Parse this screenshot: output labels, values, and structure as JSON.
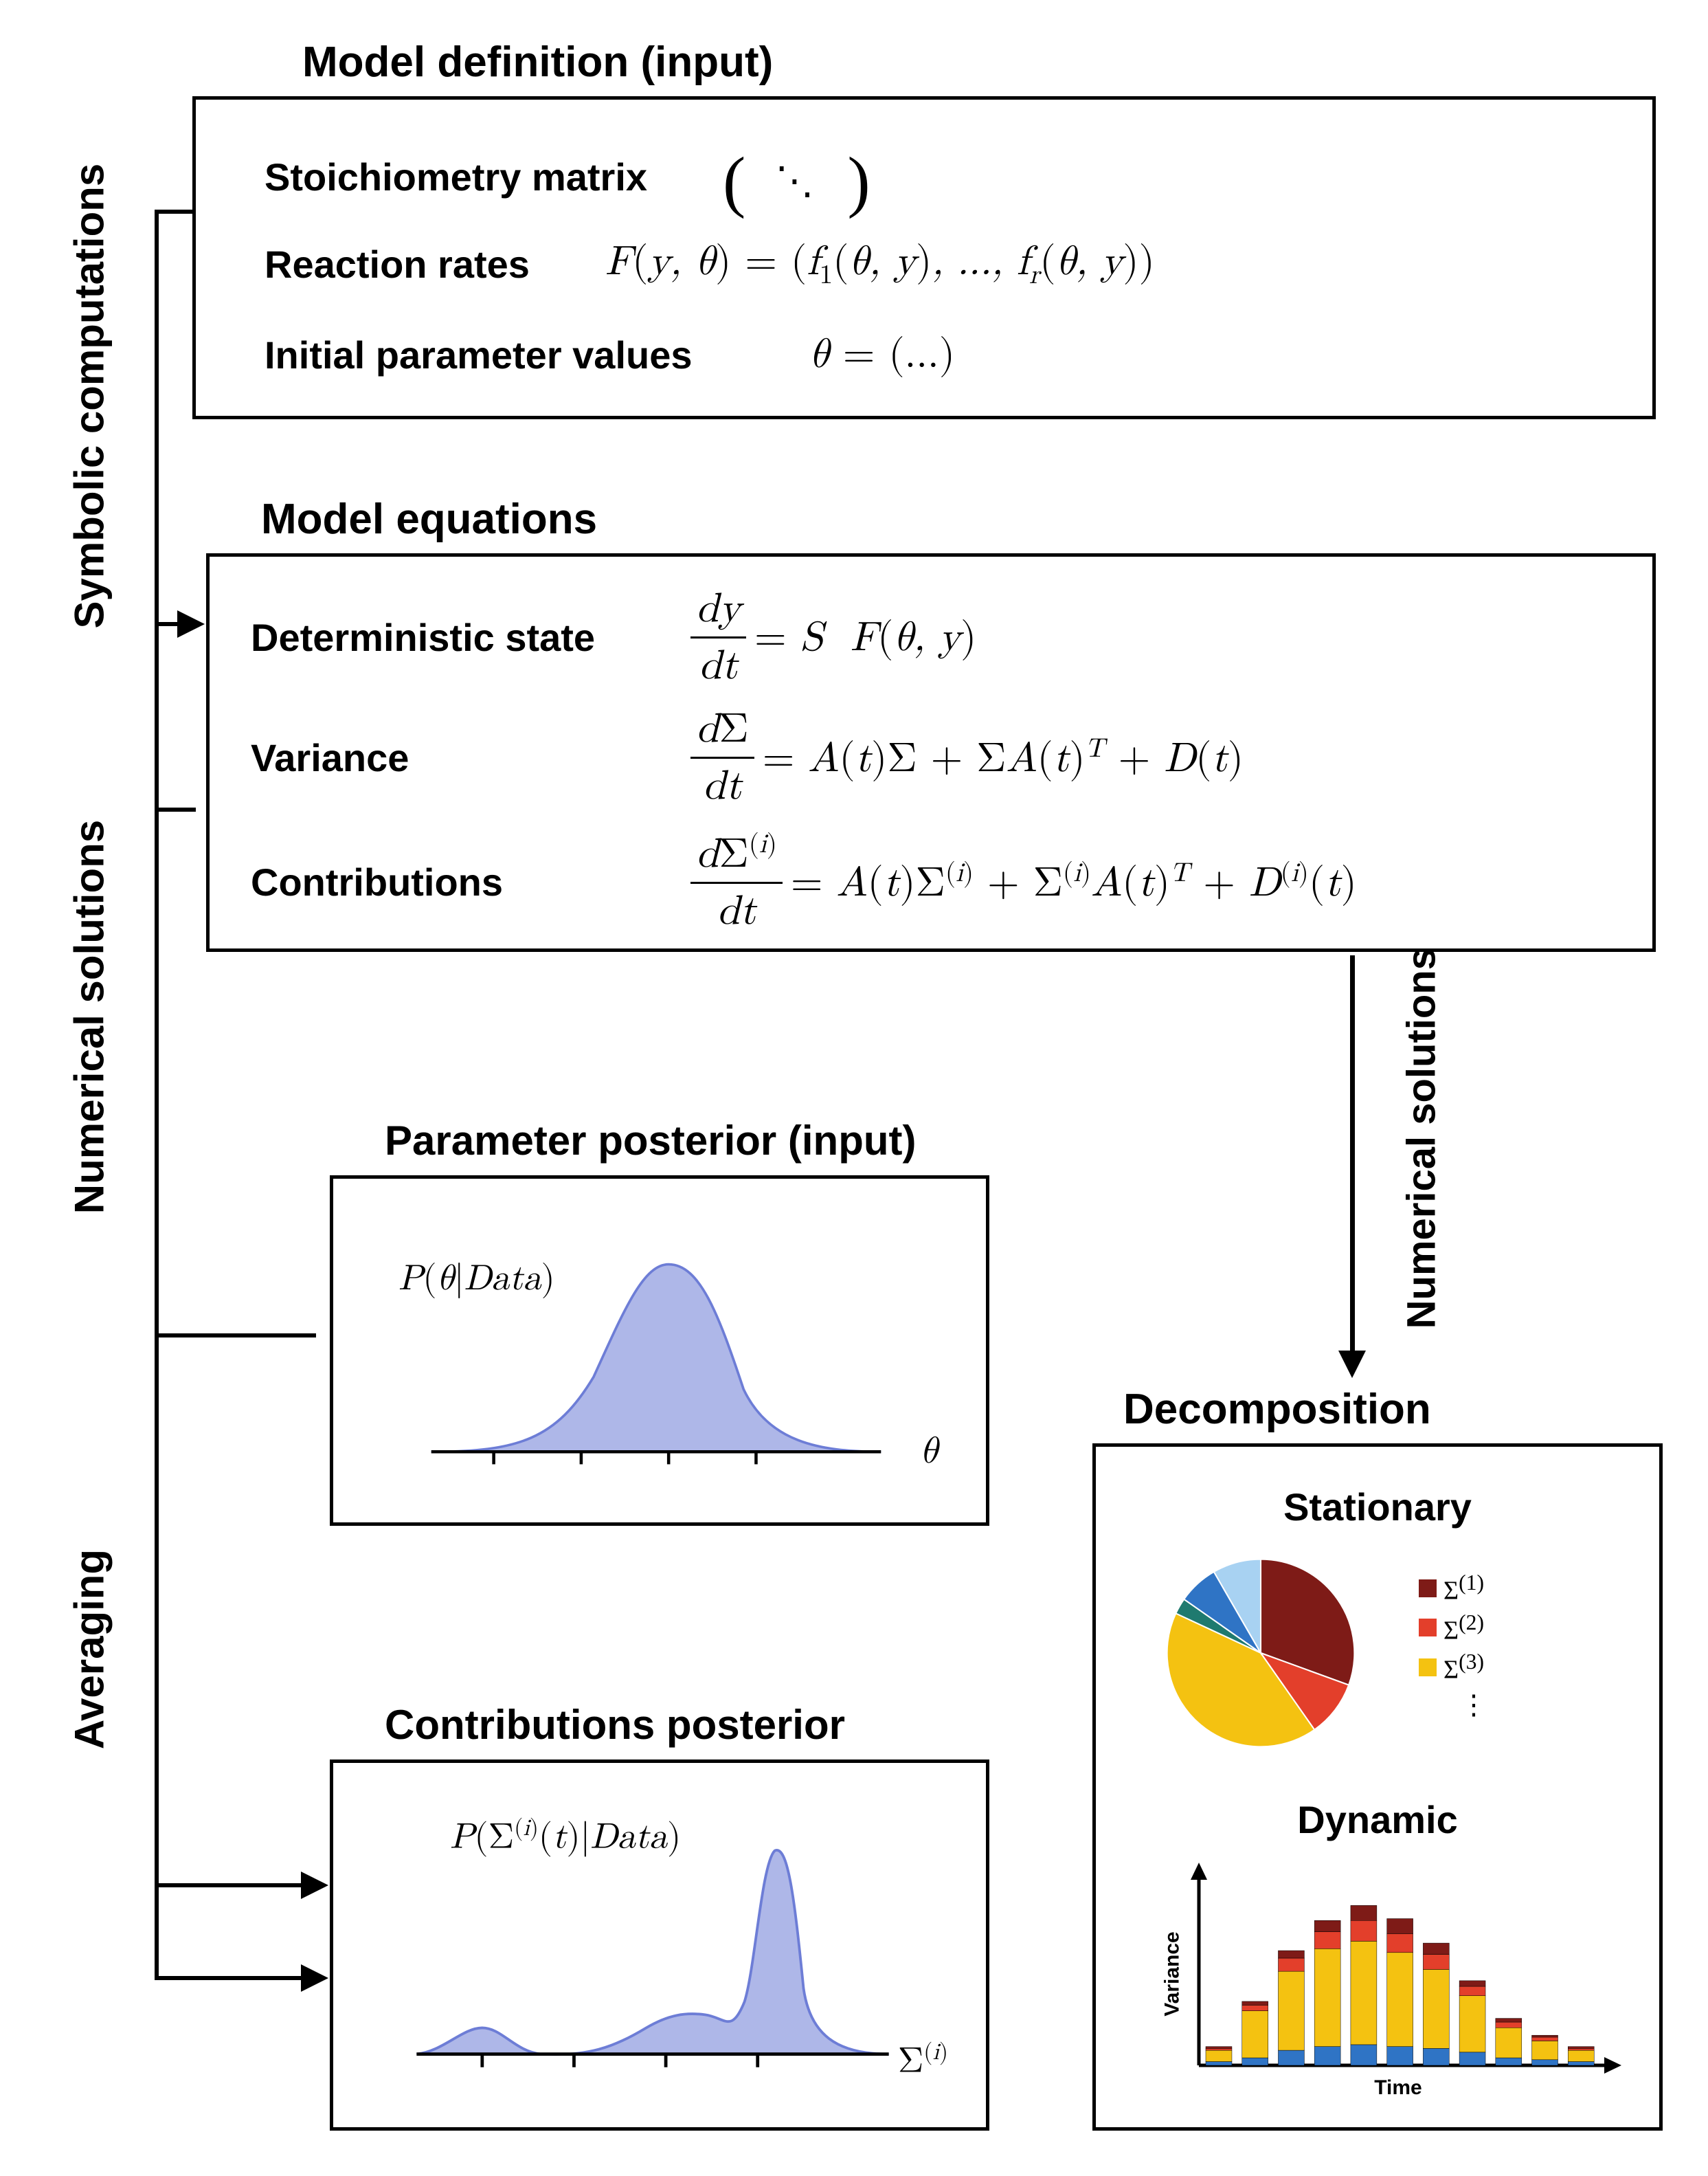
{
  "colors": {
    "border": "#000000",
    "text": "#000000",
    "dist_fill": "#aeb7e8",
    "dist_stroke": "#6d7dd6",
    "pie": {
      "dark_red": "#7e1b17",
      "red": "#e33f2b",
      "yellow": "#f4c211",
      "teal": "#1f7a6f",
      "blue": "#2f74c5",
      "light_blue": "#a8d2f2"
    },
    "bar": {
      "dark_red": "#7e1b17",
      "red": "#e33f2b",
      "yellow": "#f4c211",
      "blue": "#2f74c5"
    }
  },
  "vlabels": {
    "symbolic": "Symbolic computations",
    "numerical1": "Numerical solutions",
    "averaging": "Averaging",
    "numerical2": "Numerical solutions"
  },
  "box1": {
    "title": "Model definition (input)",
    "r1_label": "Stoichiometry matrix",
    "r2_label": "Reaction rates",
    "r2_math": "F(y, θ) = (f₁(θ, y), ..., f_r(θ, y))",
    "r3_label": "Initial parameter values",
    "r3_math": "θ = (...)"
  },
  "box2": {
    "title": "Model equations",
    "r1_label": "Deterministic state",
    "r1_frac_num": "dy",
    "r1_frac_den": "dt",
    "r1_rhs": " = S  F(θ, y)",
    "r2_label": "Variance",
    "r2_frac_num": "dΣ",
    "r2_frac_den": "dt",
    "r2_rhs_a": " = A(t)Σ + ΣA(t)",
    "r2_rhs_sup": "T",
    "r2_rhs_b": " + D(t)",
    "r3_label": "Contributions",
    "r3_frac_num_a": "dΣ",
    "r3_frac_num_sup": "(i)",
    "r3_frac_den": "dt",
    "r3_rhs_1": " = A(t)Σ",
    "r3_rhs_2": " + Σ",
    "r3_rhs_3": "A(t)",
    "r3_rhs_4": " + D",
    "r3_rhs_5": "(t)",
    "r3_sup": "(i)",
    "r3_supT": "T"
  },
  "box3": {
    "title": "Parameter posterior (input)",
    "curve_label": "P(θ|Data)",
    "x_axis": "θ"
  },
  "box4": {
    "title": "Contributions posterior",
    "curve_label_a": "P(Σ",
    "curve_label_sup": "(i)",
    "curve_label_b": "(t)|Data)",
    "x_axis_a": "Σ",
    "x_axis_sup": "(i)"
  },
  "box5": {
    "title": "Decomposition",
    "stationary_title": "Stationary",
    "dynamic_title": "Dynamic",
    "legend": {
      "l1": "Σ",
      "l1_sup": "(1)",
      "l2": "Σ",
      "l2_sup": "(2)",
      "l3": "Σ",
      "l3_sup": "(3)",
      "dots": "⋮"
    },
    "pie_slices": [
      {
        "color": "#7e1b17",
        "value": 110
      },
      {
        "color": "#e33f2b",
        "value": 35
      },
      {
        "color": "#f4c211",
        "value": 150
      },
      {
        "color": "#1f7a6f",
        "value": 10
      },
      {
        "color": "#2f74c5",
        "value": 25
      },
      {
        "color": "#a8d2f2",
        "value": 30
      }
    ],
    "bar_data": {
      "x_label": "Time",
      "y_label": "Variance",
      "bars": [
        {
          "blue": 2,
          "yellow": 6,
          "red": 1,
          "dark_red": 1
        },
        {
          "blue": 4,
          "yellow": 25,
          "red": 3,
          "dark_red": 2
        },
        {
          "blue": 8,
          "yellow": 42,
          "red": 7,
          "dark_red": 4
        },
        {
          "blue": 10,
          "yellow": 52,
          "red": 9,
          "dark_red": 6
        },
        {
          "blue": 11,
          "yellow": 55,
          "red": 11,
          "dark_red": 8
        },
        {
          "blue": 10,
          "yellow": 50,
          "red": 10,
          "dark_red": 8
        },
        {
          "blue": 9,
          "yellow": 42,
          "red": 8,
          "dark_red": 6
        },
        {
          "blue": 7,
          "yellow": 30,
          "red": 5,
          "dark_red": 3
        },
        {
          "blue": 4,
          "yellow": 16,
          "red": 3,
          "dark_red": 2
        },
        {
          "blue": 3,
          "yellow": 10,
          "red": 2,
          "dark_red": 1
        },
        {
          "blue": 2,
          "yellow": 6,
          "red": 1,
          "dark_red": 1
        }
      ]
    }
  }
}
